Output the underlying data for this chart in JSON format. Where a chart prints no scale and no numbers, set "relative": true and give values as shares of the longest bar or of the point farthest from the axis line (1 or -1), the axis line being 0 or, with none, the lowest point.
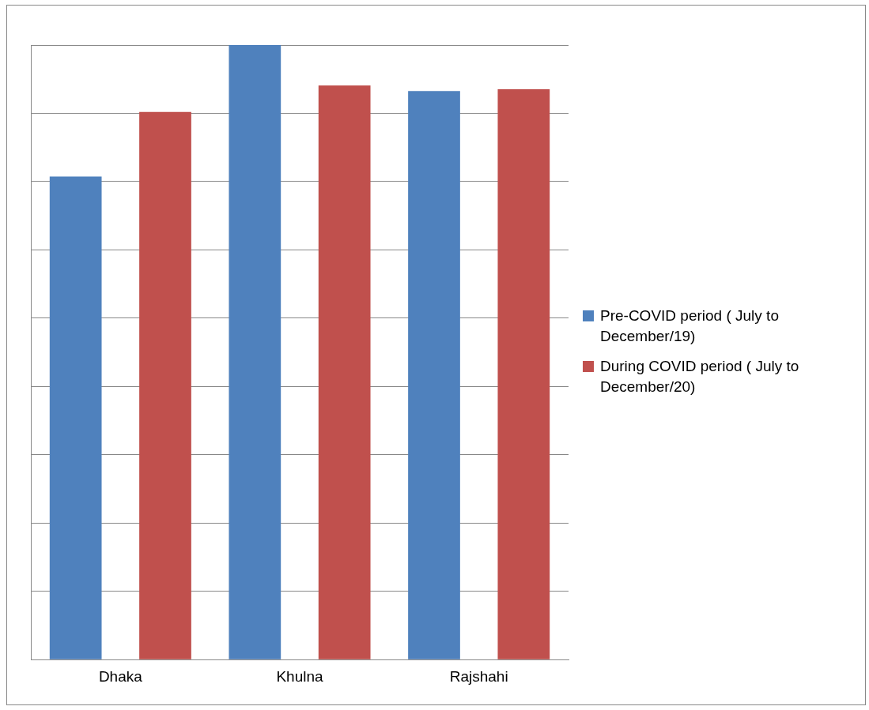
{
  "chart_data": {
    "type": "bar",
    "relative": true,
    "categories": [
      "Dhaka",
      "Khulna",
      "Rajshahi"
    ],
    "series": [
      {
        "name": "Pre-COVID period ( July to December/19)",
        "color": "#4f81bd",
        "values": [
          0.786,
          1,
          0.925
        ]
      },
      {
        "name": "During COVID period ( July to December/20)",
        "color": "#c0504d",
        "values": [
          0.891,
          0.934,
          0.928
        ]
      }
    ],
    "grid": "y",
    "legend": "right"
  }
}
